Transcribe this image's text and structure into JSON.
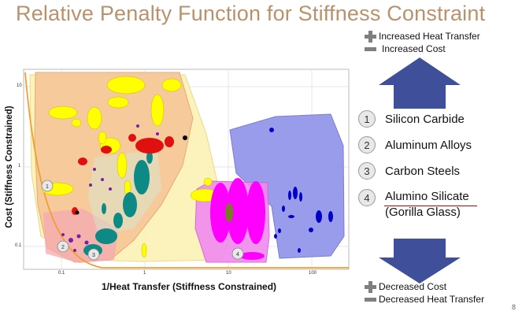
{
  "slide": {
    "title": "Relative Penalty Function for Stiffness Constraint",
    "page_number": "8"
  },
  "chart": {
    "y_label": "Cost (Stiffness Constrained)",
    "x_label": "1/Heat Transfer (Stiffness Constrained)",
    "x_ticks": [
      "0.1",
      "1",
      "10",
      "100"
    ],
    "y_ticks": [
      "10",
      "1",
      "0.1"
    ],
    "markers": [
      "1",
      "2",
      "3",
      "4"
    ]
  },
  "legend_top": {
    "line1": "Increased Heat Transfer",
    "line2": "Increased Cost"
  },
  "legend_bottom": {
    "line1": "Decreased Cost",
    "line2": "Decreased Heat Transfer"
  },
  "materials": [
    {
      "num": "1",
      "label": "Silicon Carbide"
    },
    {
      "num": "2",
      "label": "Aluminum Alloys"
    },
    {
      "num": "3",
      "label": "Carbon Steels"
    },
    {
      "num": "4",
      "label": "Alumino Silicate",
      "label2": "(Gorilla Glass)"
    }
  ],
  "colors": {
    "title": "#b8926a",
    "arrow": "#3f4f99",
    "orange_region": "#f6c89a",
    "yellow_region": "#fbf3b8",
    "blue_region": "#8f92e8",
    "magenta_region": "#f08af0"
  }
}
